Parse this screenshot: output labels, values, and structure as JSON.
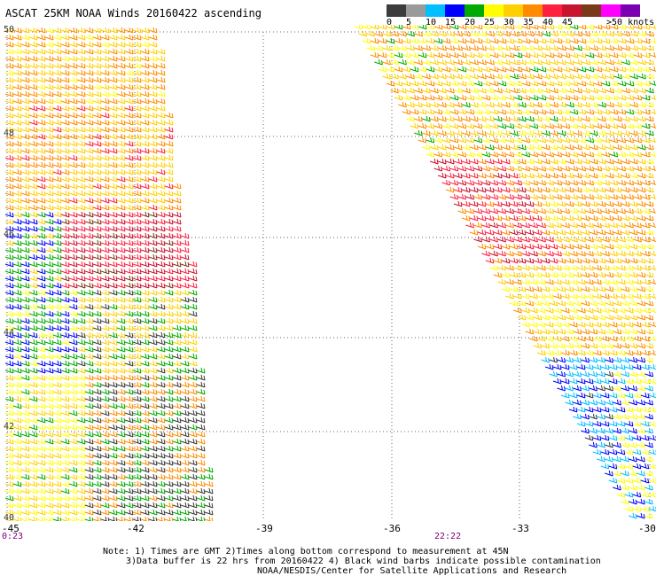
{
  "title": "ASCAT 25KM NOAA Winds 20160422 ascending",
  "legend": {
    "colors": [
      "#3c3c3c",
      "#9a9a9a",
      "#00bfff",
      "#0000ff",
      "#00aa00",
      "#ffff00",
      "#ffd000",
      "#ff8c00",
      "#ff2040",
      "#c71530",
      "#7a3a1a",
      "#ff00ff",
      "#7a00b0"
    ],
    "labels": [
      "0",
      "5",
      "10",
      "15",
      "20",
      "25",
      "30",
      "35",
      "40",
      "45",
      ">50 knots"
    ]
  },
  "axes": {
    "y_ticks": [
      "50",
      "48",
      "46",
      "44",
      "42",
      "40"
    ],
    "x_ticks": [
      "-45",
      "-42",
      "-39",
      "-36",
      "-33",
      "-30"
    ]
  },
  "times": {
    "left": "0:23",
    "right": "22:22"
  },
  "notes": {
    "line1": "Note: 1) Times are GMT 2)Times along bottom correspond to measurement at 45N",
    "line2": "3)Data buffer is 22 hrs from 20160422 4) Black wind barbs indicate possible contamination",
    "line3": "NOAA/NESDIS/Center for Satellite Applications and Research"
  },
  "map": {
    "lon_range": [
      -45,
      -30
    ],
    "lat_range": [
      40,
      50
    ],
    "grid": true
  }
}
